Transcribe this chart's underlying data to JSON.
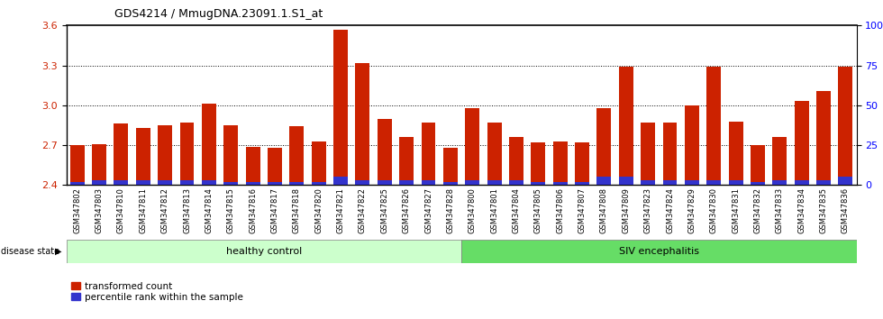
{
  "title": "GDS4214 / MmugDNA.23091.1.S1_at",
  "samples": [
    "GSM347802",
    "GSM347803",
    "GSM347810",
    "GSM347811",
    "GSM347812",
    "GSM347813",
    "GSM347814",
    "GSM347815",
    "GSM347816",
    "GSM347817",
    "GSM347818",
    "GSM347820",
    "GSM347821",
    "GSM347822",
    "GSM347825",
    "GSM347826",
    "GSM347827",
    "GSM347828",
    "GSM347800",
    "GSM347801",
    "GSM347804",
    "GSM347805",
    "GSM347806",
    "GSM347807",
    "GSM347808",
    "GSM347809",
    "GSM347823",
    "GSM347824",
    "GSM347829",
    "GSM347830",
    "GSM347831",
    "GSM347832",
    "GSM347833",
    "GSM347834",
    "GSM347835",
    "GSM347836"
  ],
  "red_values": [
    2.7,
    2.71,
    2.86,
    2.83,
    2.85,
    2.87,
    3.01,
    2.85,
    2.69,
    2.68,
    2.84,
    2.73,
    3.57,
    3.32,
    2.9,
    2.76,
    2.87,
    2.68,
    2.98,
    2.87,
    2.76,
    2.72,
    2.73,
    2.72,
    2.98,
    3.29,
    2.87,
    2.87,
    3.0,
    3.29,
    2.88,
    2.7,
    2.76,
    3.03,
    3.11,
    3.29
  ],
  "blue_percentiles": [
    2,
    3,
    3,
    3,
    3,
    3,
    3,
    2,
    2,
    2,
    2,
    2,
    5,
    3,
    3,
    3,
    3,
    2,
    3,
    3,
    3,
    2,
    2,
    2,
    5,
    5,
    3,
    3,
    3,
    3,
    3,
    2,
    3,
    3,
    3,
    5
  ],
  "healthy_control_count": 18,
  "ylim_left": [
    2.4,
    3.6
  ],
  "ylim_right": [
    0,
    100
  ],
  "yticks_left": [
    2.4,
    2.7,
    3.0,
    3.3,
    3.6
  ],
  "yticks_right": [
    0,
    25,
    50,
    75,
    100
  ],
  "ytick_labels_right": [
    "0",
    "25",
    "50",
    "75",
    "100%"
  ],
  "bar_color_red": "#cc2200",
  "bar_color_blue": "#3333cc",
  "healthy_bg": "#ccffcc",
  "siv_bg": "#66dd66",
  "healthy_label": "healthy control",
  "siv_label": "SIV encephalitis",
  "legend_red": "transformed count",
  "legend_blue": "percentile rank within the sample",
  "disease_state_label": "disease state"
}
